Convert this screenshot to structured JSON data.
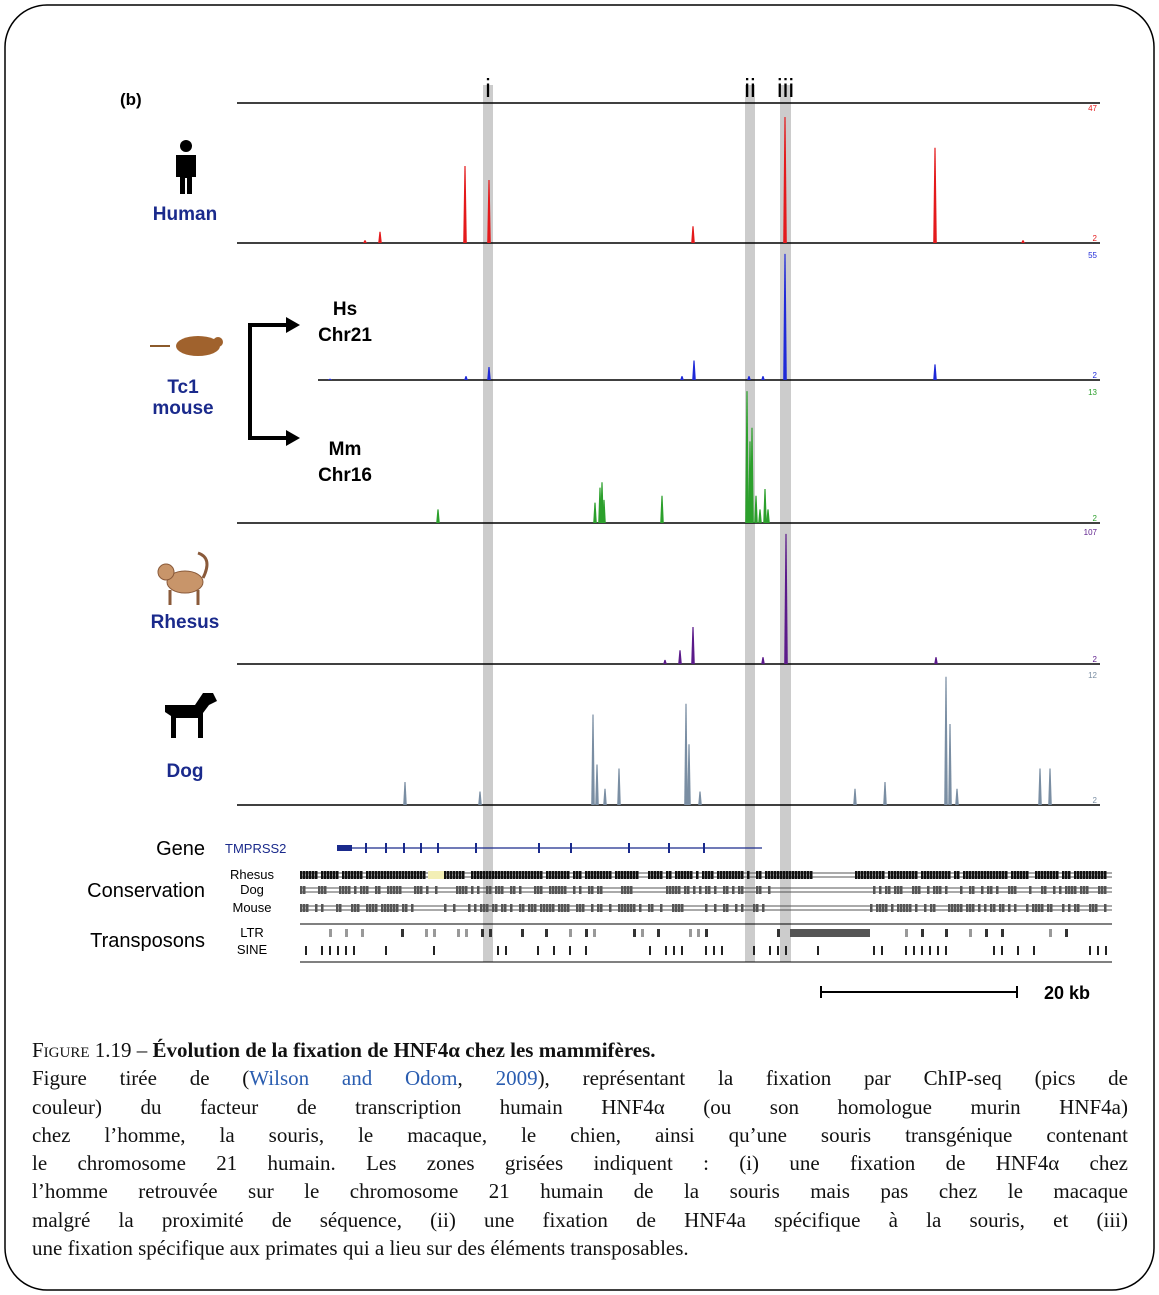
{
  "figure": {
    "panel_label": "(b)",
    "region_labels": [
      "i",
      "ii",
      "iii"
    ],
    "tracks": [
      {
        "species": [
          "Human"
        ],
        "max_label": "47",
        "min_label": "2"
      },
      {
        "species": [
          "Tc1",
          "mouse"
        ],
        "sub_label": [
          "Hs",
          "Chr21"
        ],
        "max_label": "55",
        "min_label": "2"
      },
      {
        "sub_label": [
          "Mm",
          "Chr16"
        ],
        "max_label": "13",
        "min_label": "2"
      },
      {
        "species": [
          "Rhesus"
        ],
        "max_label": "107",
        "min_label": "2"
      },
      {
        "species": [
          "Dog"
        ],
        "max_label": "12",
        "min_label": "2"
      }
    ],
    "annotation": {
      "gene_label": "Gene",
      "gene_name": "TMPRSS2",
      "conservation_label": "Conservation",
      "conservation_species": [
        "Rhesus",
        "Dog",
        "Mouse"
      ],
      "transposons_label": "Transposons",
      "transposon_types": [
        "LTR",
        "SINE"
      ],
      "scale": "20 kb"
    }
  },
  "caption": {
    "label": "Figure 1.19 –",
    "title": "Évolution de la fixation de HNF4α chez les mammifères.",
    "line1_start": "Figure tirée de (",
    "ref_authors": "Wilson and Odom",
    "ref_sep": ", ",
    "ref_year": "2009",
    "line1_end": "), représentant la fixation par ChIP-seq (pics de",
    "lines": [
      "couleur) du facteur de transcription humain HNF4α (ou son homologue murin HNF4a)",
      "chez l’homme, la souris, le macaque, le chien, ainsi qu’une souris transgénique contenant",
      "le chromosome 21 humain. Les zones grisées indiquent : (i) une fixation de HNF4α chez",
      "l’homme retrouvée sur le chromosome 21 humain de la souris mais pas chez le macaque",
      "malgré la proximité de séquence, (ii) une fixation de HNF4a spécifique à la souris, et (iii)",
      "une fixation spécifique aux primates qui a lieu sur des éléments transposables."
    ]
  }
}
